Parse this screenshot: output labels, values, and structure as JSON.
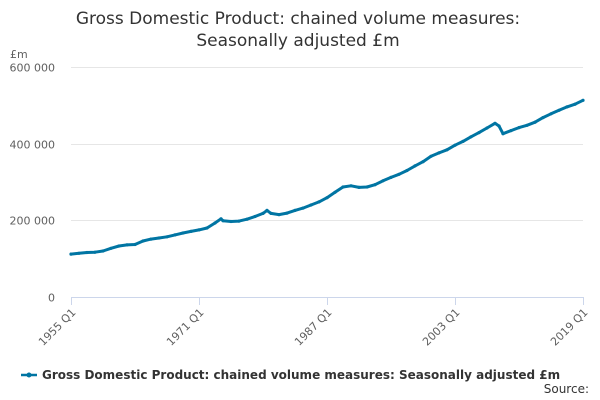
{
  "colors": {
    "series": "#0075a3",
    "grid": "#e6e6e6",
    "axis": "#ccd6eb",
    "text": "#333333",
    "tick": "#606060"
  },
  "chart_data": {
    "type": "line",
    "title_lines": [
      "Gross Domestic Product: chained volume measures:",
      "Seasonally adjusted £m"
    ],
    "ylabel": "£m",
    "ylim": [
      0,
      600000
    ],
    "yticks": [
      0,
      200000,
      400000,
      600000
    ],
    "ytick_labels": [
      "0",
      "200 000",
      "400 000",
      "600 000"
    ],
    "xlim": [
      1955,
      2019
    ],
    "xticks": [
      1955,
      1971,
      1987,
      2003,
      2019
    ],
    "xtick_labels": [
      "1955 Q1",
      "1971 Q1",
      "1987 Q1",
      "2003 Q1",
      "2019 Q1"
    ],
    "grid": true,
    "legend_position": "bottom",
    "source_label": "Source:",
    "series": [
      {
        "name": "Gross Domestic Product: chained volume measures: Seasonally adjusted £m",
        "x": [
          1955,
          1956,
          1957,
          1958,
          1959,
          1960,
          1961,
          1962,
          1963,
          1964,
          1965,
          1966,
          1967,
          1968,
          1969,
          1970,
          1971,
          1972,
          1973,
          1973.75,
          1974,
          1975,
          1976,
          1977,
          1978,
          1979,
          1979.5,
          1980,
          1981,
          1982,
          1983,
          1984,
          1985,
          1986,
          1987,
          1988,
          1989,
          1990,
          1991,
          1992,
          1993,
          1994,
          1995,
          1996,
          1997,
          1998,
          1999,
          2000,
          2001,
          2002,
          2003,
          2004,
          2005,
          2006,
          2007,
          2008,
          2008.5,
          2009,
          2010,
          2011,
          2012,
          2013,
          2014,
          2015,
          2016,
          2017,
          2018,
          2019
        ],
        "values": [
          112000,
          114000,
          116000,
          117000,
          120000,
          127000,
          133000,
          136000,
          137000,
          146000,
          151000,
          154000,
          157000,
          162000,
          167000,
          171000,
          175000,
          180000,
          193000,
          204000,
          199000,
          197000,
          198000,
          203000,
          210000,
          218000,
          226000,
          218000,
          215000,
          219000,
          226000,
          232000,
          240000,
          248000,
          259000,
          273000,
          287000,
          290000,
          286000,
          287000,
          293000,
          303000,
          312000,
          320000,
          330000,
          342000,
          353000,
          367000,
          376000,
          384000,
          396000,
          406000,
          418000,
          429000,
          441000,
          453000,
          446000,
          426000,
          434000,
          442000,
          448000,
          456000,
          468000,
          478000,
          487000,
          496000,
          503000,
          513000
        ]
      }
    ]
  }
}
